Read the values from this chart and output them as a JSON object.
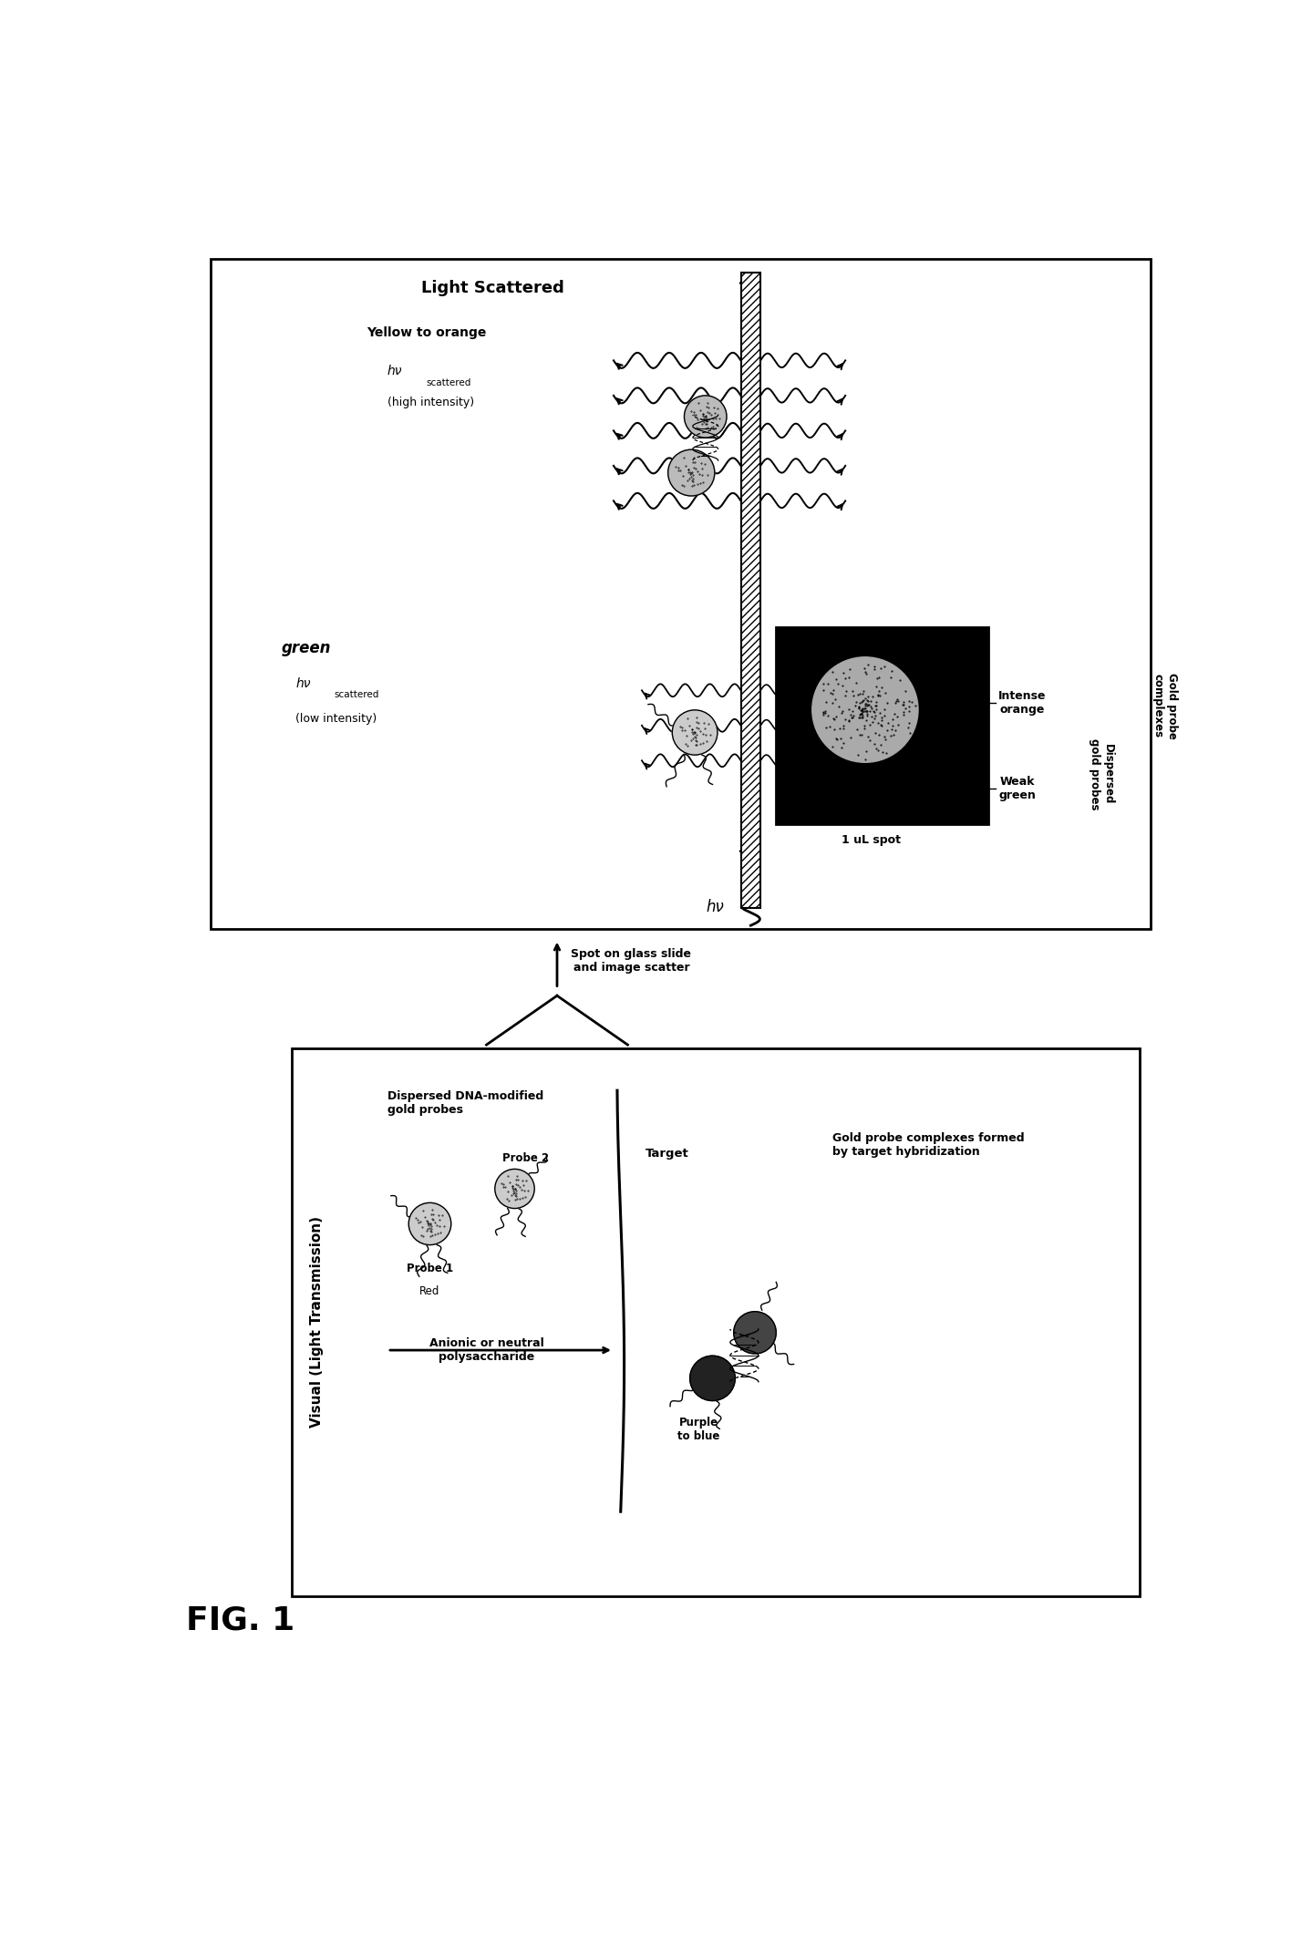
{
  "fig_label": "FIG. 1",
  "bg_color": "#ffffff",
  "left_box": {
    "title": "Visual (Light Transmission)",
    "label_dispersed": "Dispersed DNA-modified\ngold probes",
    "label_probe1": "Probe 1",
    "label_probe2": "Probe 2",
    "label_red": "Red",
    "label_target": "Target",
    "label_anionic": "Anionic or neutral\npolysaccharide",
    "label_purple": "Purple\nto blue",
    "label_complex": "Gold probe complexes formed\nby target hybridization"
  },
  "arrow_label": "Spot on glass slide\nand image scatter",
  "right_box": {
    "title": "Light Scattered",
    "label_yellow": "Yellow to orange",
    "label_hv_scattered": "hν",
    "label_scattered_sub": "scattered",
    "label_high_intensity": "(high intensity)",
    "label_green": "green",
    "label_hv_low": "hν",
    "label_scattered_low_sub": "scattered",
    "label_low_intensity": "(low intensity)",
    "label_hv_in": "hν",
    "label_weak": "Weak\ngreen",
    "label_intense": "Intense\norange",
    "label_spot": "1 uL spot",
    "label_dispersed_gold": "Dispersed\ngold probes",
    "label_gold_complex": "Gold probe\ncomplexes"
  }
}
